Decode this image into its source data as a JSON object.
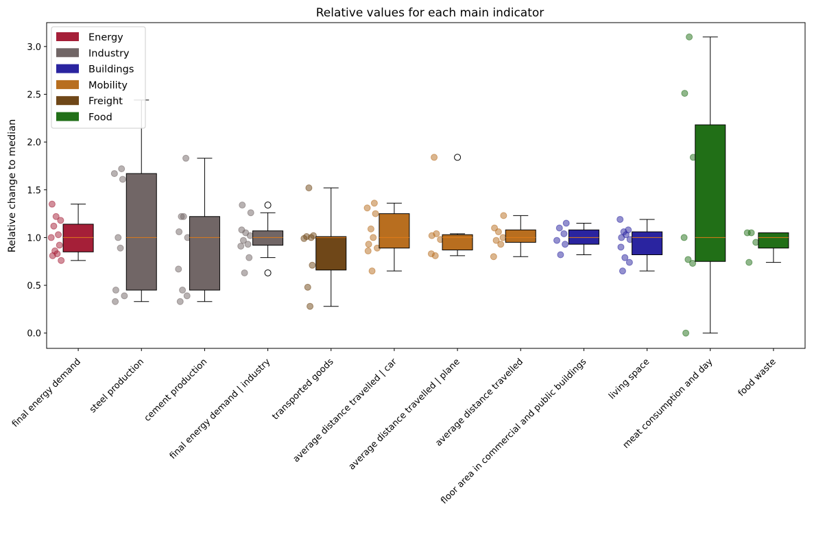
{
  "chart_data": {
    "type": "box",
    "title": "Relative values for each main indicator",
    "ylabel": "Relative change to median",
    "xlabel": "",
    "ylim": [
      -0.16,
      3.25
    ],
    "yticks": [
      "0.0",
      "0.5",
      "1.0",
      "1.5",
      "2.0",
      "2.5",
      "3.0"
    ],
    "legend_position": "top-left",
    "median_color": "#e07b1a",
    "sectors": [
      {
        "name": "Energy",
        "color": "#a51f38"
      },
      {
        "name": "Industry",
        "color": "#716666"
      },
      {
        "name": "Buildings",
        "color": "#2a24a0"
      },
      {
        "name": "Mobility",
        "color": "#b86e1f"
      },
      {
        "name": "Freight",
        "color": "#6f4718"
      },
      {
        "name": "Food",
        "color": "#216f17"
      }
    ],
    "categories": [
      {
        "label": "final energy demand",
        "sector": "Energy",
        "q1": 0.85,
        "median": 1.0,
        "q3": 1.14,
        "whisker_low": 0.76,
        "whisker_high": 1.35,
        "outliers": [],
        "points": [
          1.35,
          1.22,
          1.18,
          1.12,
          1.03,
          1.0,
          0.92,
          0.86,
          0.83,
          0.81,
          0.76
        ]
      },
      {
        "label": "steel production",
        "sector": "Industry",
        "q1": 0.45,
        "median": 1.0,
        "q3": 1.67,
        "whisker_low": 0.33,
        "whisker_high": 2.44,
        "outliers": [],
        "points": [
          2.44,
          1.72,
          1.67,
          1.61,
          1.0,
          0.89,
          0.45,
          0.39,
          0.33
        ]
      },
      {
        "label": "cement production",
        "sector": "Industry",
        "q1": 0.45,
        "median": 1.0,
        "q3": 1.22,
        "whisker_low": 0.33,
        "whisker_high": 1.83,
        "outliers": [],
        "points": [
          1.83,
          1.22,
          1.22,
          1.06,
          1.0,
          0.67,
          0.45,
          0.39,
          0.33
        ]
      },
      {
        "label": "final energy demand  | industry",
        "sector": "Industry",
        "q1": 0.92,
        "median": 1.0,
        "q3": 1.07,
        "whisker_low": 0.79,
        "whisker_high": 1.26,
        "outliers": [
          1.34,
          0.63
        ],
        "points": [
          1.34,
          1.26,
          1.08,
          1.05,
          1.02,
          0.97,
          0.93,
          0.91,
          0.79,
          0.63
        ]
      },
      {
        "label": "transported goods",
        "sector": "Freight",
        "q1": 0.66,
        "median": 1.0,
        "q3": 1.01,
        "whisker_low": 0.28,
        "whisker_high": 1.52,
        "outliers": [],
        "points": [
          1.52,
          1.02,
          1.01,
          1.0,
          0.99,
          0.71,
          0.48,
          0.28
        ]
      },
      {
        "label": "average distance travelled  | car",
        "sector": "Mobility",
        "q1": 0.89,
        "median": 1.0,
        "q3": 1.25,
        "whisker_low": 0.65,
        "whisker_high": 1.36,
        "outliers": [],
        "points": [
          1.36,
          1.31,
          1.25,
          1.09,
          1.0,
          0.93,
          0.89,
          0.86,
          0.65
        ]
      },
      {
        "label": "average distance travelled  | plane",
        "sector": "Mobility",
        "q1": 0.87,
        "median": 1.0,
        "q3": 1.03,
        "whisker_low": 0.81,
        "whisker_high": 1.04,
        "outliers": [
          1.84
        ],
        "points": [
          1.84,
          1.04,
          1.02,
          0.98,
          0.83,
          0.81
        ]
      },
      {
        "label": "average distance travelled",
        "sector": "Mobility",
        "q1": 0.95,
        "median": 1.0,
        "q3": 1.08,
        "whisker_low": 0.8,
        "whisker_high": 1.23,
        "outliers": [],
        "points": [
          1.23,
          1.1,
          1.06,
          1.0,
          0.97,
          0.93,
          0.8
        ]
      },
      {
        "label": "floor area in commercial and public buildings",
        "sector": "Buildings",
        "q1": 0.93,
        "median": 1.0,
        "q3": 1.08,
        "whisker_low": 0.82,
        "whisker_high": 1.15,
        "outliers": [],
        "points": [
          1.15,
          1.1,
          1.04,
          0.97,
          0.93,
          0.82
        ]
      },
      {
        "label": "living space",
        "sector": "Buildings",
        "q1": 0.82,
        "median": 1.0,
        "q3": 1.06,
        "whisker_low": 0.65,
        "whisker_high": 1.19,
        "outliers": [],
        "points": [
          1.19,
          1.08,
          1.06,
          1.03,
          1.0,
          0.98,
          0.9,
          0.79,
          0.74,
          0.65
        ]
      },
      {
        "label": "meat consumption  and day",
        "sector": "Food",
        "q1": 0.75,
        "median": 1.0,
        "q3": 2.18,
        "whisker_low": 0.0,
        "whisker_high": 3.1,
        "outliers": [],
        "points": [
          3.1,
          2.51,
          1.84,
          1.0,
          0.77,
          0.73,
          0.0
        ]
      },
      {
        "label": "food waste",
        "sector": "Food",
        "q1": 0.89,
        "median": 1.0,
        "q3": 1.05,
        "whisker_low": 0.74,
        "whisker_high": 1.05,
        "outliers": [],
        "points": [
          1.05,
          1.05,
          0.95,
          0.74
        ]
      }
    ]
  }
}
